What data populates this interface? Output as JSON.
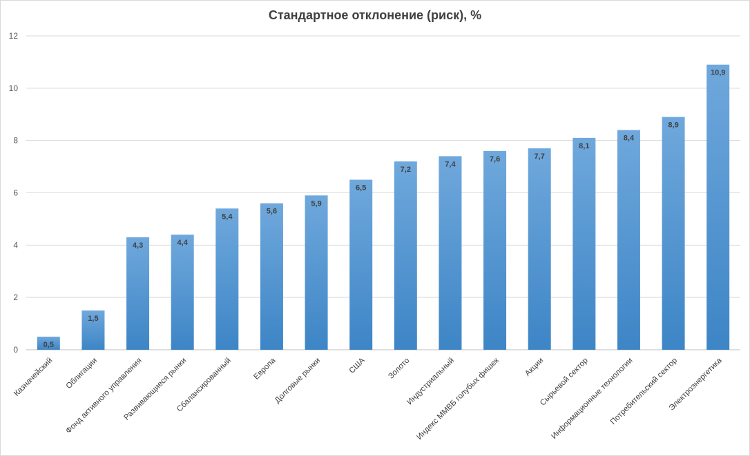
{
  "chart_data": {
    "type": "bar",
    "title": "Стандартное отклонение (риск), %",
    "xlabel": "",
    "ylabel": "",
    "ylim": [
      0,
      12
    ],
    "yticks": [
      0,
      2,
      4,
      6,
      8,
      10,
      12
    ],
    "grid": true,
    "legend": "none",
    "bar_color_top": "#6fa8dc",
    "bar_color_bottom": "#3d85c6",
    "categories": [
      "Казначейский",
      "Облигации",
      "Фонд активного управления",
      "Развивающиеся рынки",
      "Сбалансированный",
      "Европа",
      "Долговые рынки",
      "США",
      "Золото",
      "Индустриальный",
      "Индекс ММВБ голубых фишек",
      "Акции",
      "Сырьевой сектор",
      "Информационные технологии",
      "Потребительский сектор",
      "Электроэнергетика"
    ],
    "values": [
      0.5,
      1.5,
      4.3,
      4.4,
      5.4,
      5.6,
      5.9,
      6.5,
      7.2,
      7.4,
      7.6,
      7.7,
      8.1,
      8.4,
      8.9,
      10.9
    ],
    "data_labels": [
      "0,5",
      "1,5",
      "4,3",
      "4,4",
      "5,4",
      "5,6",
      "5,9",
      "6,5",
      "7,2",
      "7,4",
      "7,6",
      "7,7",
      "8,1",
      "8,4",
      "8,9",
      "10,9"
    ]
  }
}
